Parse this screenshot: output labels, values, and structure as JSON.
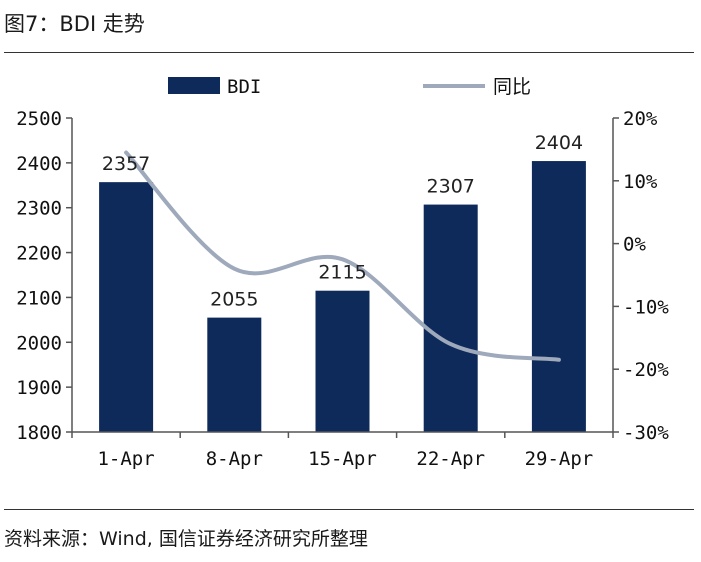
{
  "header": {
    "title": "图7：BDI 走势"
  },
  "footer": {
    "source": "资料来源：Wind, 国信证券经济研究所整理"
  },
  "colors": {
    "bar": "#0e2a5a",
    "line": "#9ea9bb",
    "axis": "#555555"
  },
  "chart_data": {
    "type": "bar",
    "title": "",
    "categories": [
      "1-Apr",
      "8-Apr",
      "15-Apr",
      "22-Apr",
      "29-Apr"
    ],
    "series": [
      {
        "name": "BDI",
        "type": "bar",
        "axis": "left",
        "values": [
          2357,
          2055,
          2115,
          2307,
          2404
        ]
      },
      {
        "name": "同比",
        "type": "line",
        "axis": "right",
        "values": [
          14.5,
          -4.0,
          -2.5,
          -16.0,
          -18.5
        ]
      }
    ],
    "data_labels": [
      "2357",
      "2055",
      "2115",
      "2307",
      "2404"
    ],
    "y_left": {
      "min": 1800,
      "max": 2500,
      "step": 100,
      "tick_labels": [
        "1800",
        "1900",
        "2000",
        "2100",
        "2200",
        "2300",
        "2400",
        "2500"
      ]
    },
    "y_right": {
      "min": -30,
      "max": 20,
      "step": 10,
      "tick_labels": [
        "-30%",
        "-20%",
        "-10%",
        "0%",
        "10%",
        "20%"
      ]
    },
    "legend": {
      "placement": "top",
      "items": [
        "BDI",
        "同比"
      ]
    },
    "grid": false
  }
}
